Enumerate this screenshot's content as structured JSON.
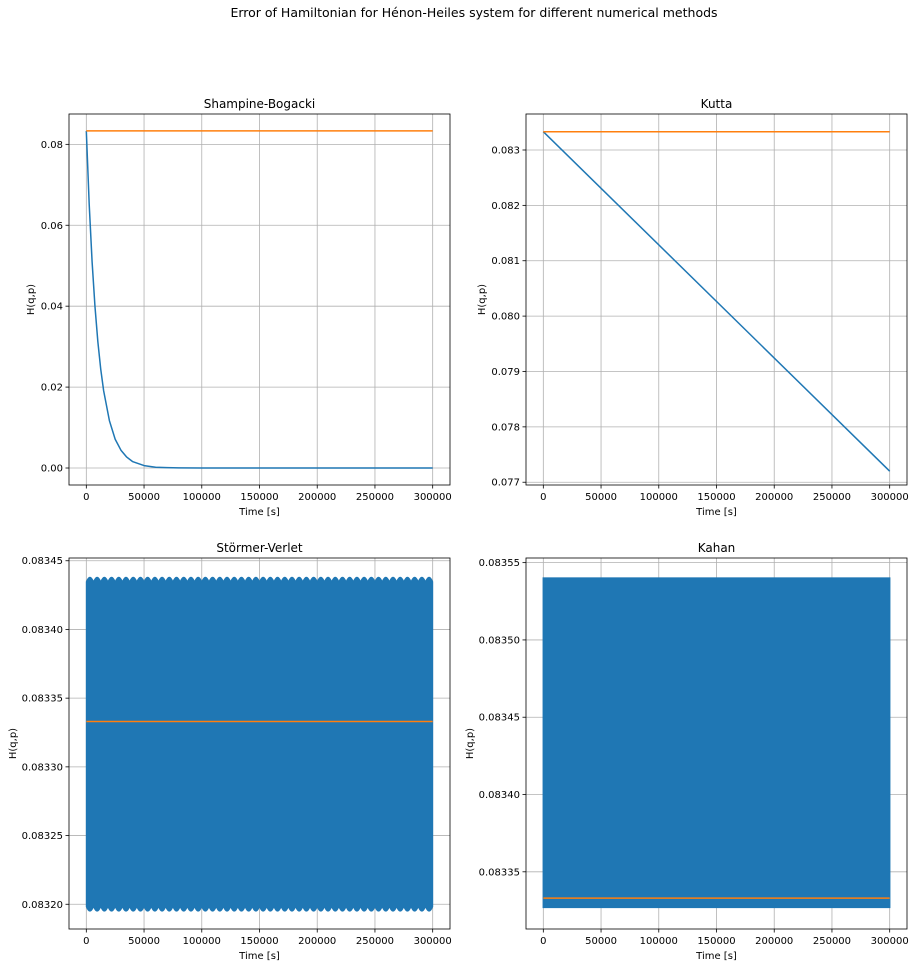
{
  "figure_title": "Error of Hamiltonian for Hénon-Heiles system for different numerical methods",
  "colors": {
    "series_blue": "#1f77b4",
    "series_orange": "#ff7f0e",
    "grid": "#b0b0b0"
  },
  "chart_data": [
    {
      "type": "line",
      "title": "Shampine-Bogacki",
      "xlabel": "Time [s]",
      "ylabel": "H(q,p)",
      "xlim": [
        -15000,
        315000
      ],
      "ylim": [
        -0.0042,
        0.0875
      ],
      "xticks": [
        0,
        50000,
        100000,
        150000,
        200000,
        250000,
        300000
      ],
      "xtick_labels": [
        "0",
        "50000",
        "100000",
        "150000",
        "200000",
        "250000",
        "300000"
      ],
      "yticks": [
        0.0,
        0.02,
        0.04,
        0.06,
        0.08
      ],
      "ytick_labels": [
        "0.00",
        "0.02",
        "0.04",
        "0.06",
        "0.08"
      ],
      "grid": true,
      "series": [
        {
          "color": "#1f77b4",
          "style": "line",
          "x": [
            0,
            2500,
            5000,
            7500,
            10000,
            12500,
            15000,
            20000,
            25000,
            30000,
            35000,
            40000,
            50000,
            60000,
            70000,
            80000,
            100000,
            150000,
            200000,
            250000,
            300000
          ],
          "y": [
            0.0833,
            0.0652,
            0.051,
            0.0399,
            0.0312,
            0.0244,
            0.0191,
            0.0117,
            0.0071,
            0.0044,
            0.0027,
            0.0016,
            0.0006,
            0.0002,
            0.0001,
            3e-05,
            0.0,
            0.0,
            0.0,
            0.0,
            0.0
          ]
        },
        {
          "color": "#ff7f0e",
          "style": "line",
          "x": [
            0,
            300000
          ],
          "y": [
            0.08333,
            0.08333
          ]
        }
      ]
    },
    {
      "type": "line",
      "title": "Kutta",
      "xlabel": "Time [s]",
      "ylabel": "H(q,p)",
      "xlim": [
        -15000,
        315000
      ],
      "ylim": [
        0.07695,
        0.08365
      ],
      "xticks": [
        0,
        50000,
        100000,
        150000,
        200000,
        250000,
        300000
      ],
      "xtick_labels": [
        "0",
        "50000",
        "100000",
        "150000",
        "200000",
        "250000",
        "300000"
      ],
      "yticks": [
        0.077,
        0.078,
        0.079,
        0.08,
        0.081,
        0.082,
        0.083
      ],
      "ytick_labels": [
        "0.077",
        "0.078",
        "0.079",
        "0.080",
        "0.081",
        "0.082",
        "0.083"
      ],
      "grid": true,
      "series": [
        {
          "color": "#1f77b4",
          "style": "line",
          "x": [
            0,
            300000
          ],
          "y": [
            0.08333,
            0.0772
          ]
        },
        {
          "color": "#ff7f0e",
          "style": "line",
          "x": [
            0,
            300000
          ],
          "y": [
            0.08333,
            0.08333
          ]
        }
      ]
    },
    {
      "type": "line",
      "title": "Störmer-Verlet",
      "xlabel": "Time [s]",
      "ylabel": "H(q,p)",
      "xlim": [
        -15000,
        315000
      ],
      "ylim": [
        0.083182,
        0.083452
      ],
      "xticks": [
        0,
        50000,
        100000,
        150000,
        200000,
        250000,
        300000
      ],
      "xtick_labels": [
        "0",
        "50000",
        "100000",
        "150000",
        "200000",
        "250000",
        "300000"
      ],
      "yticks": [
        0.0832,
        0.08325,
        0.0833,
        0.08335,
        0.0834,
        0.08345
      ],
      "ytick_labels": [
        "0.08320",
        "0.08325",
        "0.08330",
        "0.08335",
        "0.08340",
        "0.08345"
      ],
      "grid": true,
      "series": [
        {
          "color": "#1f77b4",
          "style": "oscillation-band",
          "x_range": [
            0,
            300000
          ],
          "y_min": 0.083195,
          "y_max": 0.083438,
          "beat_count": 48
        },
        {
          "color": "#ff7f0e",
          "style": "line",
          "x": [
            0,
            300000
          ],
          "y": [
            0.083333,
            0.083333
          ]
        }
      ]
    },
    {
      "type": "line",
      "title": "Kahan",
      "xlabel": "Time [s]",
      "ylabel": "H(q,p)",
      "xlim": [
        -15000,
        315000
      ],
      "ylim": [
        0.083313,
        0.083553
      ],
      "xticks": [
        0,
        50000,
        100000,
        150000,
        200000,
        250000,
        300000
      ],
      "xtick_labels": [
        "0",
        "50000",
        "100000",
        "150000",
        "200000",
        "250000",
        "300000"
      ],
      "yticks": [
        0.08335,
        0.0834,
        0.08345,
        0.0835,
        0.08355
      ],
      "ytick_labels": [
        "0.08335",
        "0.08340",
        "0.08345",
        "0.08350",
        "0.08355"
      ],
      "grid": true,
      "series": [
        {
          "color": "#1f77b4",
          "style": "oscillation-band",
          "x_range": [
            0,
            300000
          ],
          "y_min": 0.083327,
          "y_max": 0.08354,
          "beat_count": 0
        },
        {
          "color": "#ff7f0e",
          "style": "line",
          "x": [
            0,
            300000
          ],
          "y": [
            0.083333,
            0.083333
          ]
        }
      ]
    }
  ]
}
